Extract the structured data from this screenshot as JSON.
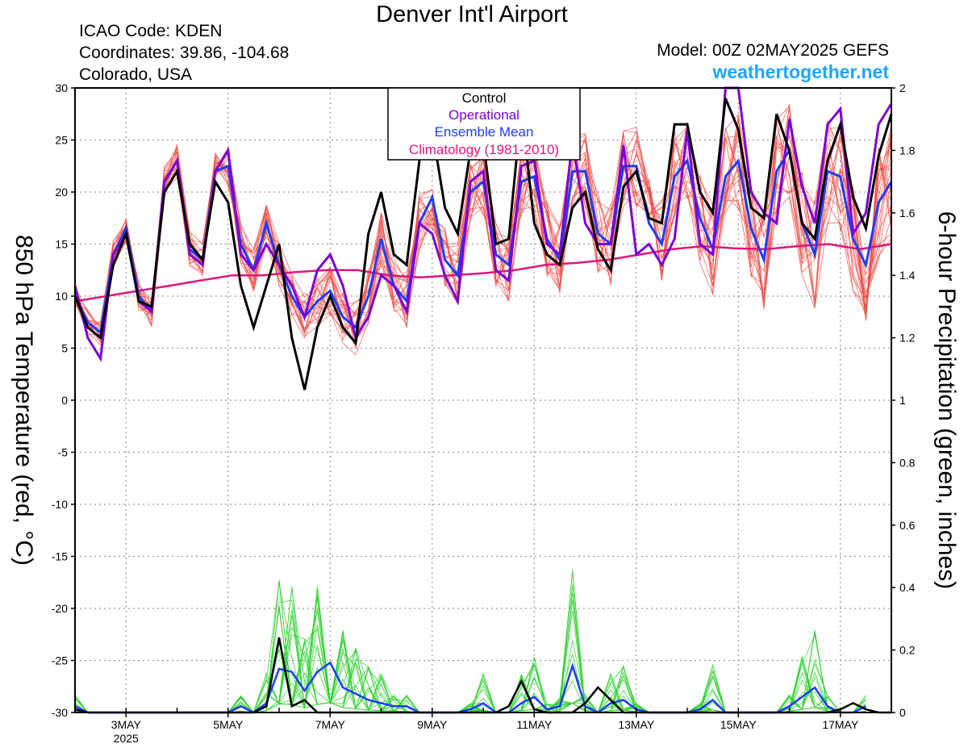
{
  "header": {
    "title": "Denver Int'l Airport",
    "icao": "ICAO Code: KDEN",
    "coords": "Coordinates: 39.86, -104.68",
    "region": "Colorado, USA",
    "model": "Model: 00Z 02MAY2025 GEFS",
    "site": "weathertogether.net"
  },
  "colors": {
    "control": "#000000",
    "operational": "#7b00d4",
    "mean": "#1f3df5",
    "climatology": "#e0157a",
    "members_temp": "#f0504a",
    "members_precip": "#30d030",
    "site": "#1ea4ff"
  },
  "chart_data": {
    "type": "line",
    "title": "Denver Int'l Airport",
    "ylabel": "850 hPa Temperature (red, °C)",
    "y2label": "6-hour Precipitation (green, inches)",
    "ylim": [
      -30,
      30
    ],
    "y2lim": [
      0,
      2
    ],
    "yticks": [
      30,
      25,
      20,
      15,
      10,
      5,
      0,
      -5,
      -10,
      -15,
      -20,
      -25,
      -30
    ],
    "y2ticks": [
      "2",
      "1.8",
      "1.6",
      "1.4",
      "1.2",
      "1",
      "0.8",
      "0.6",
      "0.4",
      "0.2",
      "0"
    ],
    "xlim": [
      2.0,
      18.0
    ],
    "xstep_days": 0.25,
    "xticks": [
      {
        "day": 3,
        "label": "3MAY",
        "sub": "2025"
      },
      {
        "day": 5,
        "label": "5MAY",
        "sub": ""
      },
      {
        "day": 7,
        "label": "7MAY",
        "sub": ""
      },
      {
        "day": 9,
        "label": "9MAY",
        "sub": ""
      },
      {
        "day": 11,
        "label": "11MAY",
        "sub": ""
      },
      {
        "day": 13,
        "label": "13MAY",
        "sub": ""
      },
      {
        "day": 15,
        "label": "15MAY",
        "sub": ""
      },
      {
        "day": 17,
        "label": "17MAY",
        "sub": ""
      }
    ],
    "grid": true,
    "legend": [
      "Control",
      "Operational",
      "Ensemble Mean",
      "Climatology (1981-2010)"
    ],
    "legend_position": "top-center",
    "series_temp": [
      {
        "name": "Control",
        "values": [
          10,
          7,
          6,
          13,
          16,
          9.5,
          9,
          20,
          22,
          15,
          13.5,
          21,
          19,
          11,
          7,
          11,
          15,
          6,
          1,
          7,
          10,
          7,
          5.5,
          16,
          20,
          14,
          13,
          23,
          26,
          18.5,
          16,
          24,
          25,
          15,
          15.5,
          28,
          17,
          14,
          13,
          18.5,
          20,
          14.5,
          12.5,
          20.5,
          22,
          17.5,
          17,
          26.5,
          26.5,
          20,
          18,
          29,
          26,
          18.5,
          17.5,
          27.5,
          24,
          17,
          15.5,
          23,
          26.5,
          19.5,
          16.5,
          23.5,
          27.5
        ]
      },
      {
        "name": "Operational",
        "values": [
          11,
          6,
          4,
          14,
          16,
          9.5,
          8.5,
          21,
          23,
          14,
          13,
          22,
          24,
          14,
          12.5,
          15,
          13,
          11,
          8,
          12.5,
          14,
          11,
          6,
          8,
          12,
          11,
          8.5,
          17,
          16,
          12,
          9.5,
          21,
          22,
          12.5,
          11.5,
          22.5,
          23,
          15,
          14,
          25,
          17,
          15,
          15,
          24.5,
          14,
          15,
          13,
          15.5,
          26,
          15,
          14,
          30,
          30,
          20,
          18,
          17,
          27,
          20.5,
          17,
          26.5,
          28,
          16,
          18,
          26.5,
          28.5
        ]
      },
      {
        "name": "Ensemble Mean",
        "values": [
          10,
          7.5,
          6.5,
          14,
          16.5,
          10,
          8.5,
          21,
          23,
          14.5,
          13.5,
          22,
          22.5,
          15,
          12.5,
          17,
          13,
          10,
          8,
          9.5,
          10.5,
          8,
          7,
          10,
          15.5,
          11,
          9.5,
          17,
          19.5,
          13.5,
          12,
          20,
          21,
          14,
          13,
          21,
          21.5,
          15.5,
          13.5,
          22,
          22,
          16,
          15,
          22.5,
          22.5,
          17,
          15,
          21.5,
          23,
          17.5,
          14.5,
          21.5,
          23,
          16.5,
          13.5,
          22,
          24,
          17,
          14,
          22,
          21.5,
          15.5,
          13,
          19,
          21
        ]
      },
      {
        "name": "Climatology (1981-2010)",
        "values": [
          9.5,
          10,
          10.5,
          11,
          11.5,
          12,
          12,
          12.3,
          12.5,
          12.5,
          12,
          11.8,
          12,
          12.2,
          12.5,
          13,
          13.2,
          13.5,
          14,
          14.5,
          14.8,
          14.6,
          14.5,
          14.8,
          15,
          14.5,
          15
        ]
      }
    ],
    "series_precip": [
      {
        "name": "Control",
        "values": [
          0.01,
          0,
          0,
          0,
          0,
          0,
          0,
          0,
          0,
          0,
          0,
          0,
          0,
          0,
          0,
          0.02,
          0.24,
          0.02,
          0.04,
          0,
          0,
          0,
          0,
          0,
          0,
          0,
          0,
          0,
          0,
          0,
          0,
          0,
          0,
          0,
          0.02,
          0.1,
          0.01,
          0,
          0,
          0,
          0.03,
          0.08,
          0.04,
          0,
          0,
          0,
          0,
          0,
          0,
          0,
          0,
          0,
          0,
          0,
          0,
          0,
          0,
          0,
          0,
          0,
          0.01,
          0.03,
          0.01,
          0,
          0
        ]
      },
      {
        "name": "Ensemble Mean",
        "values": [
          0.02,
          0,
          0,
          0,
          0,
          0,
          0,
          0,
          0,
          0,
          0,
          0,
          0,
          0.02,
          0,
          0.03,
          0.14,
          0.13,
          0.07,
          0.13,
          0.16,
          0.08,
          0.06,
          0.04,
          0.03,
          0.02,
          0.02,
          0,
          0,
          0,
          0,
          0.01,
          0.03,
          0,
          0,
          0.03,
          0.05,
          0.01,
          0.02,
          0.15,
          0.02,
          0,
          0.03,
          0.04,
          0.01,
          0,
          0,
          0,
          0,
          0.01,
          0.04,
          0,
          0,
          0,
          0,
          0,
          0.02,
          0.05,
          0.08,
          0.02,
          0,
          0,
          0.02
        ]
      }
    ]
  }
}
